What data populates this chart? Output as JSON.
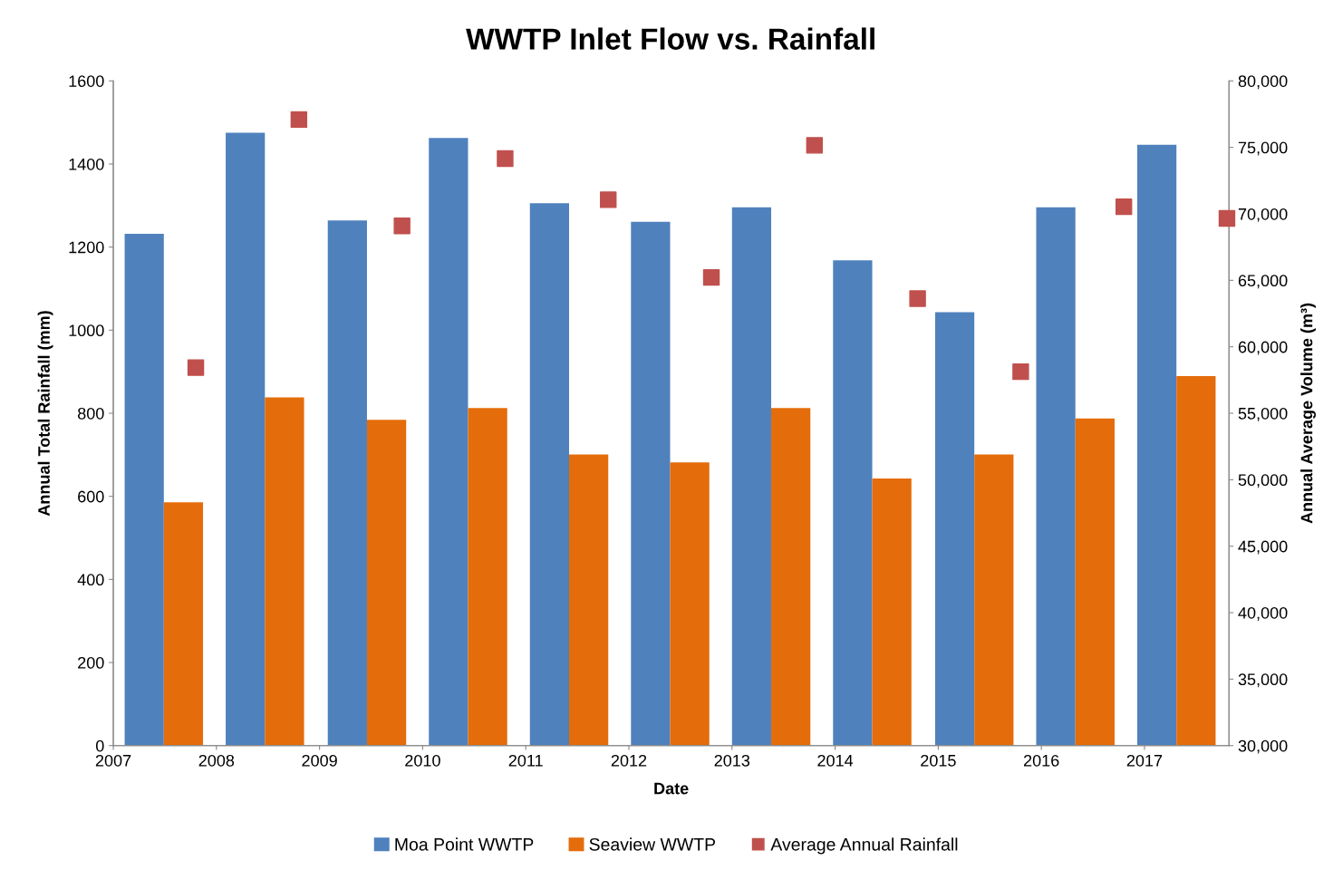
{
  "chart_data": {
    "type": "bar",
    "title": "WWTP Inlet Flow vs. Rainfall",
    "xlabel": "Date",
    "ylabel": "Annual Total Rainfall (mm)",
    "y2label": "Annual Average Volume (m³)",
    "xlim": [
      2007,
      2017.82
    ],
    "xticks": [
      2007,
      2008,
      2009,
      2010,
      2011,
      2012,
      2013,
      2014,
      2015,
      2016,
      2017
    ],
    "ylim": [
      0,
      1600
    ],
    "yticks": [
      0,
      200,
      400,
      600,
      800,
      1000,
      1200,
      1400,
      1600
    ],
    "y2lim": [
      30000,
      80000
    ],
    "y2ticks": [
      {
        "value": 30000,
        "label": "30,000"
      },
      {
        "value": 35000,
        "label": "35,000"
      },
      {
        "value": 40000,
        "label": "40,000"
      },
      {
        "value": 45000,
        "label": "45,000"
      },
      {
        "value": 50000,
        "label": "50,000"
      },
      {
        "value": 55000,
        "label": "55,000"
      },
      {
        "value": 60000,
        "label": "60,000"
      },
      {
        "value": 65000,
        "label": "65,000"
      },
      {
        "value": 70000,
        "label": "70,000"
      },
      {
        "value": 75000,
        "label": "75,000"
      },
      {
        "value": 80000,
        "label": "80,000"
      }
    ],
    "grid": false,
    "legend": "bottom",
    "series": [
      {
        "name": "Moa Point WWTP",
        "axis": "y2",
        "color": "#4f81bd",
        "x": [
          2007.3,
          2008.28,
          2009.27,
          2010.25,
          2011.23,
          2012.21,
          2013.19,
          2014.17,
          2015.16,
          2016.14,
          2017.12
        ],
        "values": [
          68500,
          76100,
          69500,
          75700,
          70800,
          69400,
          70500,
          66500,
          62600,
          70500,
          75200
        ]
      },
      {
        "name": "Seaview WWTP",
        "axis": "y2",
        "color": "#e46c0a",
        "x": [
          2007.68,
          2008.66,
          2009.65,
          2010.63,
          2011.61,
          2012.59,
          2013.57,
          2014.55,
          2015.54,
          2016.52,
          2017.5
        ],
        "values": [
          48300,
          56200,
          54500,
          55400,
          51900,
          51300,
          55400,
          50100,
          51900,
          54600,
          57800
        ]
      },
      {
        "name": "Average Annual Rainfall",
        "type": "scatter",
        "axis": "y",
        "marker": "square",
        "color": "#c0504d",
        "x": [
          2007.8,
          2008.8,
          2009.8,
          2010.8,
          2011.8,
          2012.8,
          2013.8,
          2014.8,
          2015.8,
          2016.8,
          2017.8
        ],
        "values": [
          910,
          1507,
          1251,
          1413,
          1314,
          1127,
          1445,
          1076,
          900,
          1297,
          1269
        ]
      }
    ]
  }
}
